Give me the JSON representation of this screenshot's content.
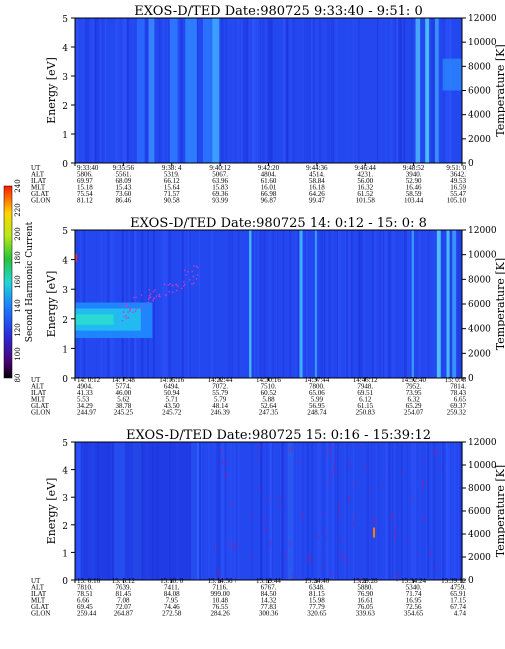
{
  "chart_data": [
    {
      "type": "heatmap",
      "title": "EXOS-D/TED   Date:980725  9:33:40 - 9:51: 0",
      "ylabel": "Energy [eV]",
      "y2label": "Temperature [K]",
      "ylim": [
        0,
        5
      ],
      "y2lim": [
        0,
        12000
      ],
      "yticks": [
        "0",
        "1",
        "2",
        "3",
        "4",
        "5"
      ],
      "y2ticks": [
        "0",
        "2000",
        "4000",
        "6000",
        "8000",
        "10000",
        "12000"
      ],
      "table": {
        "row_labels": [
          "UT",
          "ALT",
          "ILAT",
          "MLT",
          "GLAT",
          "GLON"
        ],
        "columns": [
          [
            "9:33:40",
            "5806.",
            "69.97",
            "15.18",
            "75.54",
            "81.12"
          ],
          [
            "9:35:56",
            "5561.",
            "68.09",
            "15.43",
            "73.60",
            "86.46"
          ],
          [
            "9:38: 4",
            "5319.",
            "66.12",
            "15.64",
            "71.57",
            "90.58"
          ],
          [
            "9:40:12",
            "5067.",
            "63.96",
            "15.83",
            "69.36",
            "93.99"
          ],
          [
            "9:42:20",
            "4804.",
            "61.60",
            "16.01",
            "66.98",
            "96.87"
          ],
          [
            "9:44:36",
            "4514.",
            "58.84",
            "16.18",
            "64.26",
            "99.47"
          ],
          [
            "9:46:44",
            "4231.",
            "56.00",
            "16.32",
            "61.52",
            "101.58"
          ],
          [
            "9:48:52",
            "3940.",
            "52.90",
            "16.46",
            "58.59",
            "103.44"
          ],
          [
            "9:51: 0",
            "3642.",
            "49.53",
            "16.59",
            "55.47",
            "105.10"
          ]
        ]
      }
    },
    {
      "type": "heatmap",
      "title": "EXOS-D/TED   Date:980725  14: 0:12 - 15: 0: 8",
      "ylabel": "Energy [eV]",
      "y2label": "Temperature [K]",
      "ylim": [
        0,
        5
      ],
      "y2lim": [
        0,
        12000
      ],
      "yticks": [
        "0",
        "1",
        "2",
        "3",
        "4",
        "5"
      ],
      "y2ticks": [
        "0",
        "2000",
        "4000",
        "6000",
        "8000",
        "10000",
        "12000"
      ],
      "colorbar": {
        "label": "Second Harmonic Current",
        "range": [
          80,
          240
        ],
        "ticks": [
          "80",
          "100",
          "120",
          "140",
          "160",
          "180",
          "200",
          "220",
          "240"
        ]
      },
      "table": {
        "row_labels": [
          "UT",
          "ALT",
          "ILAT",
          "MLT",
          "GLAT",
          "GLON"
        ],
        "columns": [
          [
            "14: 0:12",
            "4904.",
            "41.33",
            "5.53",
            "34.29",
            "244.97"
          ],
          [
            "14: 7:48",
            "5774.",
            "46.00",
            "5.62",
            "38.78",
            "245.25"
          ],
          [
            "14:15:16",
            "6494.",
            "50.94",
            "5.71",
            "43.50",
            "245.72"
          ],
          [
            "14:22:44",
            "7072.",
            "55.79",
            "5.79",
            "48.14",
            "246.39"
          ],
          [
            "14:30:16",
            "7510.",
            "60.52",
            "5.88",
            "52.64",
            "247.35"
          ],
          [
            "14:37:44",
            "7800.",
            "65.06",
            "5.99",
            "56.95",
            "248.74"
          ],
          [
            "14:45:12",
            "7948.",
            "69.51",
            "6.12",
            "61.15",
            "250.83"
          ],
          [
            "14:52:40",
            "7952.",
            "73.95",
            "6.32",
            "65.29",
            "254.07"
          ],
          [
            "15: 0: 8",
            "7814.",
            "78.43",
            "6.65",
            "69.37",
            "259.32"
          ]
        ]
      }
    },
    {
      "type": "heatmap",
      "title": "EXOS-D/TED   Date:980725  15: 0:16 - 15:39:12",
      "ylabel": "Energy [eV]",
      "y2label": "Temperature [K]",
      "ylim": [
        0,
        5
      ],
      "y2lim": [
        0,
        12000
      ],
      "yticks": [
        "0",
        "1",
        "2",
        "3",
        "4",
        "5"
      ],
      "y2ticks": [
        "0",
        "2000",
        "4000",
        "6000",
        "8000",
        "10000",
        "12000"
      ],
      "table": {
        "row_labels": [
          "UT",
          "ALT",
          "ILAT",
          "MLT",
          "GLAT",
          "GLON"
        ],
        "columns": [
          [
            "15: 0:16",
            "7810.",
            "78.51",
            "6.66",
            "69.45",
            "259.44"
          ],
          [
            "15: 5:12",
            "7639.",
            "81.45",
            "7.08",
            "72.07",
            "264.87"
          ],
          [
            "15:10: 0",
            "7411.",
            "84.08",
            "7.95",
            "74.46",
            "272.58"
          ],
          [
            "15:14:56",
            "7116.",
            "999.00",
            "10.48",
            "76.55",
            "284.26"
          ],
          [
            "15:19:44",
            "6767.",
            "84.50",
            "14.32",
            "77.83",
            "300.36"
          ],
          [
            "15:24:40",
            "6348.",
            "81.15",
            "15.98",
            "77.79",
            "320.65"
          ],
          [
            "15:29:28",
            "5880.",
            "76.90",
            "16.61",
            "76.05",
            "339.63"
          ],
          [
            "15:34:24",
            "5340.",
            "71.74",
            "16.95",
            "72.56",
            "354.65"
          ],
          [
            "15:39:12",
            "4759.",
            "65.91",
            "17.15",
            "67.74",
            "4.74"
          ]
        ]
      }
    }
  ]
}
